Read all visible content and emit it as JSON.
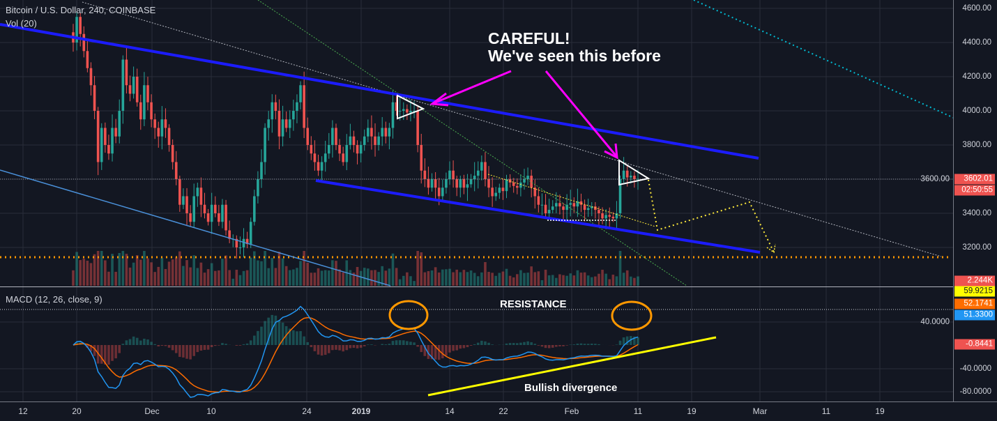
{
  "header": {
    "symbol_title": "Bitcoin / U.S. Dollar, 240, COINBASE",
    "volume_label": "Vol (20)",
    "macd_label": "MACD (12, 26, close, 9)"
  },
  "colors": {
    "background": "#131722",
    "up": "#26a69a",
    "down": "#ef5350",
    "channel": "#1c1cff",
    "macd_line": "#2196f3",
    "signal_line": "#ff6d00",
    "annotation_arrow": "#ff00ff",
    "highlight_circle": "#ff9800",
    "divergence_line": "#ffff00"
  },
  "chart_data": {
    "type": "candlestick",
    "title": "Bitcoin / U.S. Dollar, 240, COINBASE",
    "price_axis_ticks": [
      "4600.00",
      "4400.00",
      "4200.00",
      "4000.00",
      "3800.00",
      "3600.00",
      "3400.00",
      "3200.00"
    ],
    "price_ylim": [
      3020,
      4650
    ],
    "time_axis_ticks": [
      "12",
      "20",
      "Dec",
      "10",
      "24",
      "2019",
      "14",
      "22",
      "Feb",
      "11",
      "19",
      "Mar",
      "11",
      "19"
    ],
    "macd_axis_ticks": [
      "40.0000",
      "-40.0000",
      "-80.0000"
    ],
    "close": [
      4400,
      4550,
      4450,
      4350,
      4250,
      4150,
      4000,
      3700,
      3900,
      3800,
      3750,
      3900,
      3850,
      4000,
      4300,
      4150,
      4100,
      4200,
      4050,
      3950,
      4150,
      4050,
      3950,
      3900,
      3850,
      3950,
      3900,
      3800,
      3700,
      3600,
      3450,
      3500,
      3400,
      3350,
      3500,
      3550,
      3450,
      3400,
      3350,
      3450,
      3400,
      3350,
      3450,
      3300,
      3250,
      3250,
      3200,
      3200,
      3250,
      3220,
      3350,
      3500,
      3600,
      3700,
      3900,
      3950,
      4050,
      4000,
      3850,
      3950,
      3900,
      3950,
      4000,
      4050,
      4150,
      3900,
      3800,
      3750,
      3700,
      3650,
      3700,
      3750,
      3800,
      3900,
      3800,
      3750,
      3700,
      3800,
      3850,
      3800,
      3750,
      3800,
      3850,
      3900,
      3850,
      3800,
      3850,
      3900,
      3850,
      3900,
      4050,
      4000,
      4000,
      4010,
      3990,
      4000,
      4000,
      3800,
      3650,
      3600,
      3550,
      3600,
      3550,
      3500,
      3550,
      3600,
      3650,
      3600,
      3550,
      3600,
      3550,
      3570,
      3600,
      3620,
      3650,
      3700,
      3600,
      3550,
      3500,
      3520,
      3550,
      3530,
      3600,
      3580,
      3560,
      3550,
      3580,
      3600,
      3620,
      3550,
      3500,
      3450,
      3450,
      3400,
      3420,
      3440,
      3460,
      3440,
      3420,
      3450,
      3460,
      3440,
      3470,
      3450,
      3420,
      3430,
      3440,
      3420,
      3400,
      3370,
      3390,
      3380,
      3370,
      3400,
      3600,
      3650,
      3610,
      3620,
      3600,
      3602.01
    ],
    "last_price": "3602.01",
    "countdown": "02:50:55",
    "last_volume": "2.244K",
    "macd_values": {
      "level_marker": "59.9215",
      "signal": "52.1741",
      "macd": "51.3300",
      "histogram": "-0.8441"
    },
    "annotations": {
      "warning_line1": "CAREFUL!",
      "warning_line2": "We've seen this before",
      "resistance": "RESISTANCE",
      "divergence": "Bullish divergence"
    }
  }
}
